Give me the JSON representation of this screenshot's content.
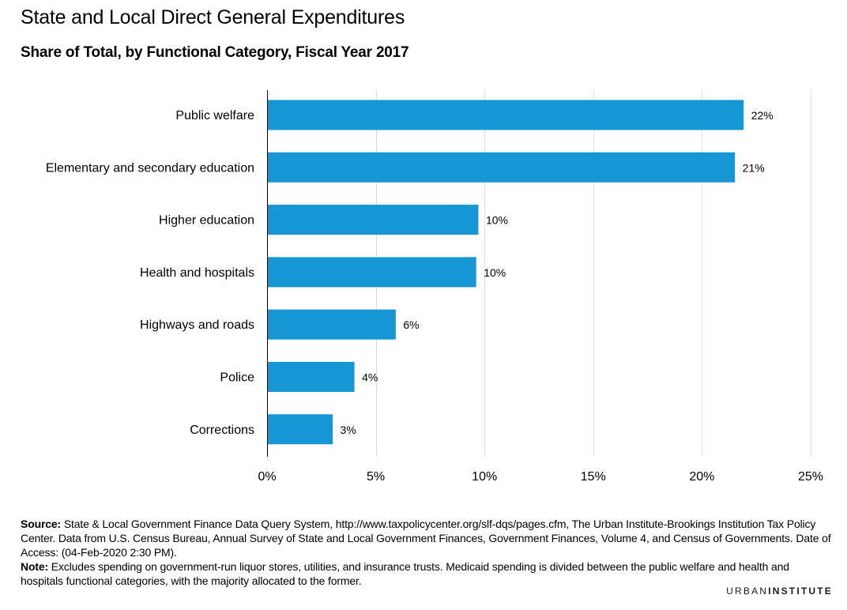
{
  "title": "State and Local Direct General Expenditures",
  "subtitle": "Share of Total, by Functional Category, Fiscal Year 2017",
  "chart_data": {
    "type": "bar",
    "orientation": "horizontal",
    "categories": [
      "Public welfare",
      "Elementary and secondary education",
      "Higher education",
      "Health and hospitals",
      "Highways and roads",
      "Police",
      "Corrections"
    ],
    "values": [
      21.9,
      21.5,
      9.7,
      9.6,
      5.9,
      4.0,
      3.0
    ],
    "data_labels": [
      "22%",
      "21%",
      "10%",
      "10%",
      "6%",
      "4%",
      "3%"
    ],
    "xlim": [
      0,
      25
    ],
    "xticks": [
      0,
      5,
      10,
      15,
      20,
      25
    ],
    "xtick_labels": [
      "0%",
      "5%",
      "10%",
      "15%",
      "20%",
      "25%"
    ],
    "grid": true,
    "xlabel": "",
    "ylabel": "",
    "bar_color": "#1696d2",
    "grid_color": "#dedede"
  },
  "notes": {
    "source_label": "Source:",
    "source_text": " State & Local Government Finance Data Query System, http://www.taxpolicycenter.org/slf-dqs/pages.cfm, The Urban Institute-Brookings Institution Tax Policy Center. Data from U.S. Census Bureau, Annual Survey of State and Local Government Finances, Government Finances, Volume 4, and Census of Governments. Date of Access: (04-Feb-2020 2:30 PM).",
    "note_label": "Note:",
    "note_text": " Excludes spending on government-run liquor stores, utilities, and insurance trusts. Medicaid spending is divided between the public welfare and health and hospitals functional categories, with the majority allocated to the former."
  },
  "brand": {
    "part1": "URBAN",
    "part2": "INSTITUTE"
  }
}
